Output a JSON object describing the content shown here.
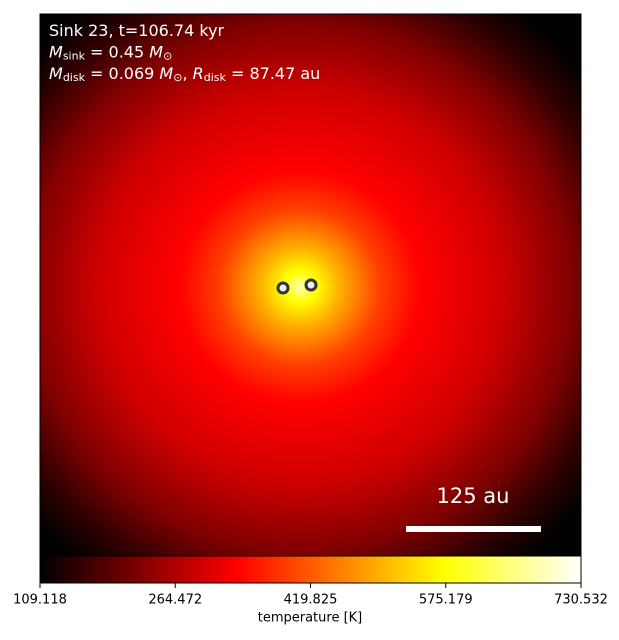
{
  "chart_data": {
    "type": "image",
    "annotations": [
      [
        {
          "text": "Sink 23, t=106.74 kyr",
          "style": "normal"
        }
      ],
      [
        {
          "text": "M",
          "style": "italic"
        },
        {
          "text": "sink",
          "style": "sub"
        },
        {
          "text": " = 0.45 ",
          "style": "normal"
        },
        {
          "text": "M",
          "style": "italic"
        },
        {
          "text": "⊙",
          "style": "sub"
        }
      ],
      [
        {
          "text": "M",
          "style": "italic"
        },
        {
          "text": "disk",
          "style": "sub"
        },
        {
          "text": " = 0.069 ",
          "style": "normal"
        },
        {
          "text": "M",
          "style": "italic"
        },
        {
          "text": "⊙",
          "style": "sub"
        },
        {
          "text": ", ",
          "style": "normal"
        },
        {
          "text": "R",
          "style": "italic"
        },
        {
          "text": "disk",
          "style": "sub"
        },
        {
          "text": " = 87.47 au",
          "style": "normal"
        }
      ]
    ],
    "scale_bar_label": "125 au",
    "colormap": "hot",
    "colorbar": {
      "label": "temperature [K]",
      "lim": [
        109.118,
        730.532
      ],
      "ticks": [
        109.118,
        264.472,
        419.825,
        575.179,
        730.532
      ]
    }
  }
}
